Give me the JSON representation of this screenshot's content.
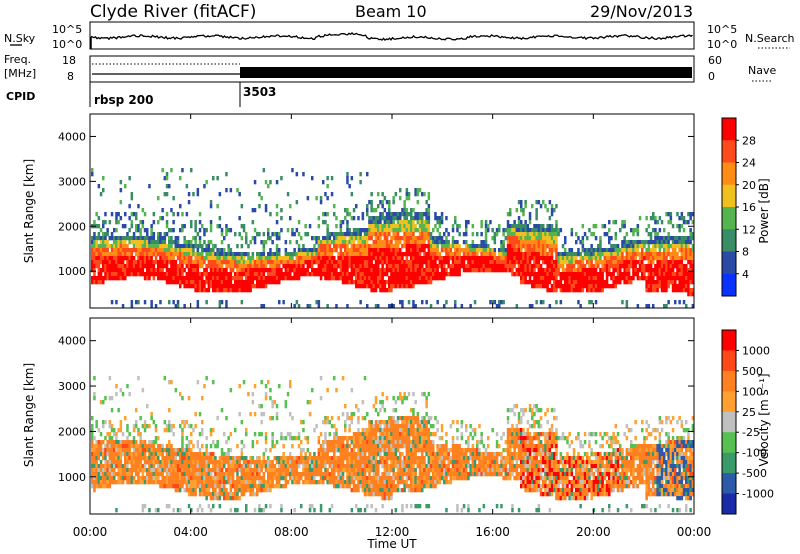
{
  "header": {
    "station": "Clyde River (fitACF)",
    "beam": "Beam 10",
    "date": "29/Nov/2013"
  },
  "strip_labels": {
    "nsky": "N.Sky",
    "nsearch": "N.Search",
    "freq": "Freq.",
    "freq_unit": "[MHz]",
    "nave": "Nave",
    "cpid": "CPID"
  },
  "strip_ticks": {
    "nsky_left": [
      "10^5",
      "10^0"
    ],
    "nsky_right": [
      "10^5",
      "10^0"
    ],
    "freq_left": [
      "18",
      "8"
    ],
    "nave_right": [
      "60",
      "0"
    ]
  },
  "cpid_segments": [
    {
      "start_hour": 0,
      "label": "rbsp 200"
    },
    {
      "start_hour": 6,
      "label": "3503"
    }
  ],
  "time_axis": {
    "label": "Time UT",
    "ticks": [
      "00:00",
      "04:00",
      "08:00",
      "12:00",
      "16:00",
      "20:00",
      "00:00"
    ],
    "tick_hours": [
      0,
      4,
      8,
      12,
      16,
      20,
      24
    ]
  },
  "colors": {
    "power_scale": [
      "#0a32ff",
      "#2a4aa8",
      "#3a8c64",
      "#56b450",
      "#f0c020",
      "#ff8c14",
      "#ff4a1c",
      "#ff0000"
    ],
    "velocity_scale": [
      "#1a2aa8",
      "#2a5aa8",
      "#3a9a6a",
      "#56c050",
      "#c0c0c0",
      "#ffa030",
      "#ff8020",
      "#ff4818",
      "#ff0000"
    ]
  },
  "chart_data": [
    {
      "type": "heatmap",
      "panel": "power",
      "ylabel": "Slant Range [km]",
      "yticks": [
        "1000",
        "2000",
        "3000",
        "4000"
      ],
      "ytick_values": [
        1000,
        2000,
        3000,
        4000
      ],
      "ylim": [
        180,
        4500
      ],
      "xlim": [
        0,
        24
      ],
      "colorbar": {
        "label": "Power [dB]",
        "ticks": [
          "4",
          "8",
          "12",
          "16",
          "20",
          "24",
          "28"
        ],
        "range": [
          0,
          32
        ]
      }
    },
    {
      "type": "heatmap",
      "panel": "velocity",
      "ylabel": "Slant Range [km]",
      "yticks": [
        "1000",
        "2000",
        "3000",
        "4000"
      ],
      "ytick_values": [
        1000,
        2000,
        3000,
        4000
      ],
      "ylim": [
        180,
        4500
      ],
      "xlim": [
        0,
        24
      ],
      "colorbar": {
        "label": "Velocity [m s⁻¹]",
        "ticks": [
          "1000",
          "500",
          "100",
          "25",
          "-25",
          "-100",
          "-500",
          "-1000"
        ]
      }
    }
  ]
}
